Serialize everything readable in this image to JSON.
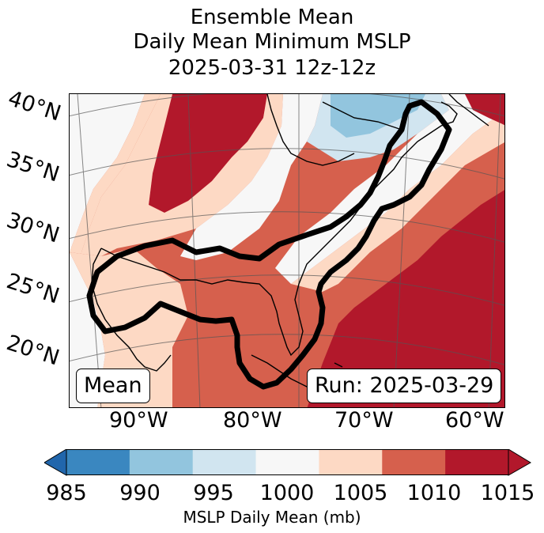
{
  "title": {
    "line1": "Ensemble Mean",
    "line2": "Daily Mean Minimum MSLP",
    "line3": "2025-03-31 12z-12z"
  },
  "map": {
    "lat_labels": [
      "40°N",
      "35°N",
      "30°N",
      "25°N",
      "20°N"
    ],
    "lon_labels": [
      "90°W",
      "80°W",
      "70°W",
      "60°W"
    ],
    "mean_label": "Mean",
    "run_label": "Run: 2025-03-29",
    "colors": {
      "c985": "#2166ac",
      "c990": "#92c5de",
      "c995": "#d1e5f0",
      "c1000": "#f7f7f7",
      "c1005": "#fdd9c4",
      "c1010": "#d6604d",
      "c1015": "#b2182b"
    }
  },
  "colorbar": {
    "ticks": [
      "985",
      "990",
      "995",
      "1000",
      "1005",
      "1010",
      "1015"
    ],
    "label": "MSLP Daily Mean (mb)",
    "colors": [
      "#3a87c0",
      "#92c5de",
      "#d1e5f0",
      "#f7f7f7",
      "#fdd9c4",
      "#d6604d",
      "#b2182b"
    ],
    "under_color": "#2166ac",
    "over_color": "#b2182b"
  }
}
